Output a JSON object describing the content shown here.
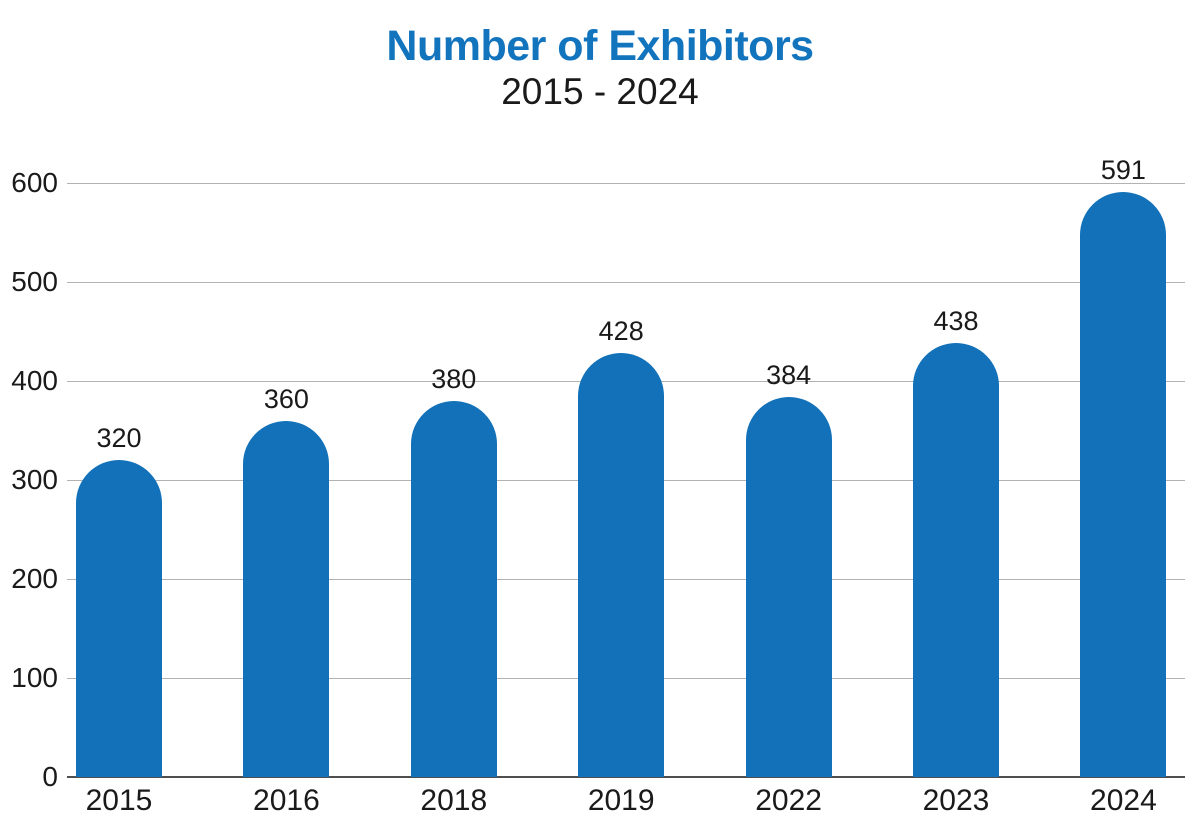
{
  "chart_data": {
    "type": "bar",
    "title": "Number of Exhibitors",
    "subtitle": "2015 - 2024",
    "categories": [
      "2015",
      "2016",
      "2018",
      "2019",
      "2022",
      "2023",
      "2024"
    ],
    "values": [
      320,
      360,
      380,
      428,
      384,
      438,
      591
    ],
    "value_labels_visible": true,
    "xlabel": "",
    "ylabel": "",
    "ylim": [
      0,
      600
    ],
    "yticks": [
      0,
      100,
      200,
      300,
      400,
      500,
      600
    ],
    "grid": true,
    "legend": null,
    "colors": {
      "bar": "#1271B8",
      "title": "#1374BE",
      "text": "#1A1A1A",
      "gridline": "#B2B2B2",
      "baseline": "#4F4F4F",
      "background": "#FFFFFF"
    }
  }
}
